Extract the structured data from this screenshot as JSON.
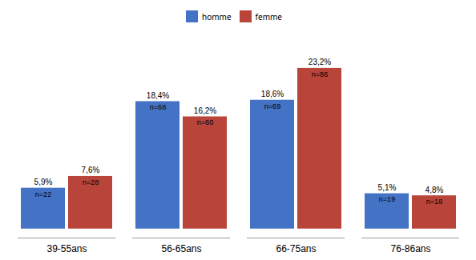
{
  "chart_data": {
    "type": "bar",
    "categories": [
      "39-55ans",
      "56-65ans",
      "66-75ans",
      "76-86ans"
    ],
    "series": [
      {
        "name": "homme",
        "color": "#4472C4",
        "values": [
          5.9,
          18.4,
          18.6,
          5.1
        ],
        "value_labels": [
          "5,9%",
          "18,4%",
          "18,6%",
          "5,1%"
        ],
        "n_labels": [
          "n=22",
          "n=68",
          "n=69",
          "n=19"
        ]
      },
      {
        "name": "femme",
        "color": "#B8443A",
        "values": [
          7.6,
          16.2,
          23.2,
          4.8
        ],
        "value_labels": [
          "7,6%",
          "16,2%",
          "23,2%",
          "4,8%"
        ],
        "n_labels": [
          "n=28",
          "n=60",
          "n=86",
          "n=18"
        ]
      }
    ],
    "ylim": [
      -1.3,
      27
    ],
    "yticks": [],
    "tick_labels": "x",
    "data_labels": true,
    "grid": false,
    "legend": "top"
  }
}
